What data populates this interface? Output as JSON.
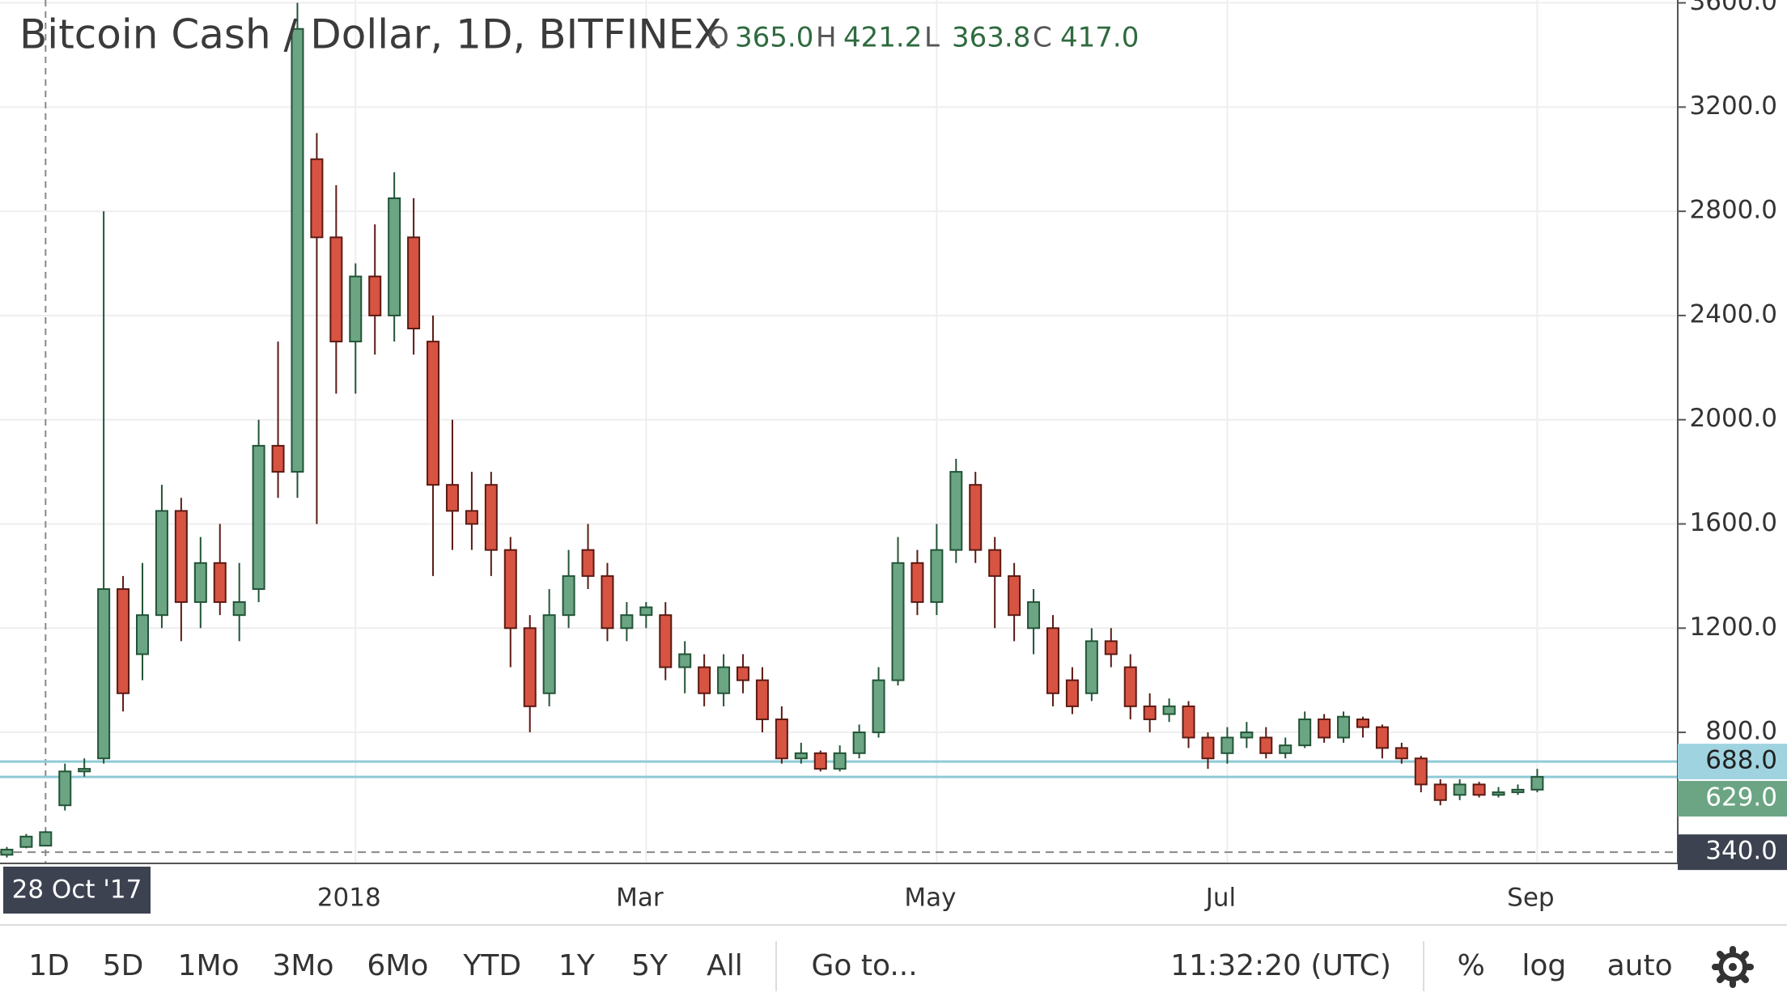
{
  "chart_data": {
    "type": "candlestick",
    "title": "Bitcoin Cash / Dollar, 1D, BITFINEX",
    "ohlc_header": [
      {
        "key": "O",
        "value": "365.0"
      },
      {
        "key": "H",
        "value": "421.2"
      },
      {
        "key": "L",
        "value": "363.8"
      },
      {
        "key": "C",
        "value": "417.0"
      }
    ],
    "categories": [
      null,
      null,
      "28 Oct '17",
      null,
      null,
      null,
      null,
      null,
      null,
      null,
      null,
      null,
      null,
      null,
      null,
      null,
      null,
      null,
      "2018",
      null,
      null,
      null,
      null,
      null,
      null,
      null,
      null,
      null,
      null,
      null,
      null,
      null,
      null,
      "Mar",
      null,
      null,
      null,
      null,
      null,
      null,
      null,
      null,
      null,
      null,
      null,
      null,
      null,
      null,
      "May",
      null,
      null,
      null,
      null,
      null,
      null,
      null,
      null,
      null,
      null,
      null,
      null,
      null,
      null,
      "Jul",
      null,
      null,
      null,
      null,
      null,
      null,
      null,
      null,
      null,
      null,
      null,
      null,
      null,
      null,
      null,
      "Sep"
    ],
    "crosshair": true,
    "open": [
      330,
      360,
      365,
      520,
      650,
      700,
      1350,
      1100,
      1250,
      1650,
      1300,
      1450,
      1250,
      1350,
      1900,
      1800,
      3000,
      2700,
      2300,
      2550,
      2400,
      2700,
      2300,
      1750,
      1650,
      1750,
      1500,
      1200,
      950,
      1250,
      1500,
      1400,
      1200,
      1250,
      1250,
      1050,
      1050,
      950,
      1050,
      1000,
      850,
      700,
      720,
      660,
      720,
      800,
      1000,
      1450,
      1300,
      1500,
      1750,
      1500,
      1400,
      1200,
      1200,
      1000,
      950,
      1150,
      1050,
      900,
      870,
      900,
      780,
      720,
      780,
      780,
      720,
      750,
      850,
      780,
      850,
      820,
      740,
      700,
      600,
      560,
      600,
      560,
      570,
      580
    ],
    "high": [
      360,
      410,
      421.2,
      680,
      700,
      2800,
      1400,
      1450,
      1750,
      1700,
      1550,
      1600,
      1450,
      2000,
      2300,
      3600,
      3100,
      2900,
      2600,
      2750,
      2950,
      2850,
      2400,
      2000,
      1800,
      1800,
      1550,
      1250,
      1350,
      1500,
      1600,
      1450,
      1300,
      1300,
      1300,
      1150,
      1100,
      1100,
      1100,
      1050,
      900,
      760,
      730,
      750,
      830,
      1050,
      1550,
      1500,
      1600,
      1850,
      1800,
      1550,
      1450,
      1350,
      1250,
      1050,
      1200,
      1200,
      1100,
      950,
      930,
      920,
      800,
      820,
      840,
      820,
      780,
      880,
      870,
      880,
      860,
      830,
      760,
      710,
      620,
      620,
      610,
      590,
      600,
      660
    ],
    "low": [
      320,
      355,
      363.8,
      500,
      630,
      680,
      880,
      1000,
      1200,
      1150,
      1200,
      1250,
      1150,
      1300,
      1700,
      1700,
      1600,
      2100,
      2100,
      2250,
      2300,
      2250,
      1400,
      1500,
      1500,
      1400,
      1050,
      800,
      900,
      1200,
      1350,
      1150,
      1150,
      1200,
      1000,
      950,
      900,
      900,
      950,
      800,
      680,
      680,
      650,
      650,
      700,
      780,
      980,
      1250,
      1250,
      1450,
      1450,
      1200,
      1150,
      1100,
      900,
      870,
      920,
      1050,
      850,
      800,
      840,
      740,
      660,
      680,
      740,
      700,
      700,
      740,
      760,
      760,
      780,
      700,
      680,
      570,
      520,
      540,
      550,
      550,
      560,
      570
    ],
    "close": [
      350,
      400,
      417,
      650,
      660,
      1350,
      950,
      1250,
      1650,
      1300,
      1450,
      1300,
      1300,
      1900,
      1800,
      3500,
      2700,
      2300,
      2550,
      2400,
      2850,
      2350,
      1750,
      1650,
      1600,
      1500,
      1200,
      900,
      1250,
      1400,
      1400,
      1200,
      1250,
      1280,
      1050,
      1100,
      950,
      1050,
      1000,
      850,
      700,
      720,
      660,
      720,
      800,
      1000,
      1450,
      1300,
      1500,
      1800,
      1500,
      1400,
      1250,
      1300,
      950,
      900,
      1150,
      1100,
      900,
      850,
      900,
      780,
      700,
      780,
      800,
      720,
      750,
      850,
      780,
      860,
      820,
      740,
      700,
      600,
      540,
      600,
      560,
      570,
      580,
      629
    ],
    "up_color": "#6ba583",
    "up_border": "#225437",
    "down_color": "#d75442",
    "down_border": "#5b1a13",
    "ylim": [
      297,
      3611
    ],
    "yticks": [
      {
        "value": 800,
        "label": "800.0"
      },
      {
        "value": 1200,
        "label": "1200.0"
      },
      {
        "value": 1600,
        "label": "1600.0"
      },
      {
        "value": 2000,
        "label": "2000.0"
      },
      {
        "value": 2400,
        "label": "2400.0"
      },
      {
        "value": 2800,
        "label": "2800.0"
      },
      {
        "value": 3200,
        "label": "3200.0"
      },
      {
        "value": 3600,
        "label": "3600.0"
      }
    ],
    "grid": true,
    "price_lines": [
      {
        "value": 688,
        "label": "688.0",
        "line_color": "#8fcad6",
        "tag_color": "#9fd3e0",
        "text_color": "#222",
        "style": "solid"
      },
      {
        "value": 629,
        "label": "629.0",
        "line_color": "#8fcad6",
        "tag_color": "#6ba583",
        "text_color": "#fff",
        "style": "solid"
      },
      {
        "value": 340,
        "label": "340.0",
        "line_color": "#888888",
        "tag_color": "#3c4250",
        "text_color": "#fff",
        "style": "dashed"
      }
    ]
  },
  "toolbar": {
    "intervals": [
      "1D",
      "5D",
      "1Mo",
      "3Mo",
      "6Mo",
      "YTD",
      "1Y",
      "5Y",
      "All"
    ],
    "goto": "Go to...",
    "time": "11:32:20 (UTC)",
    "options": [
      "%",
      "log",
      "auto"
    ]
  }
}
